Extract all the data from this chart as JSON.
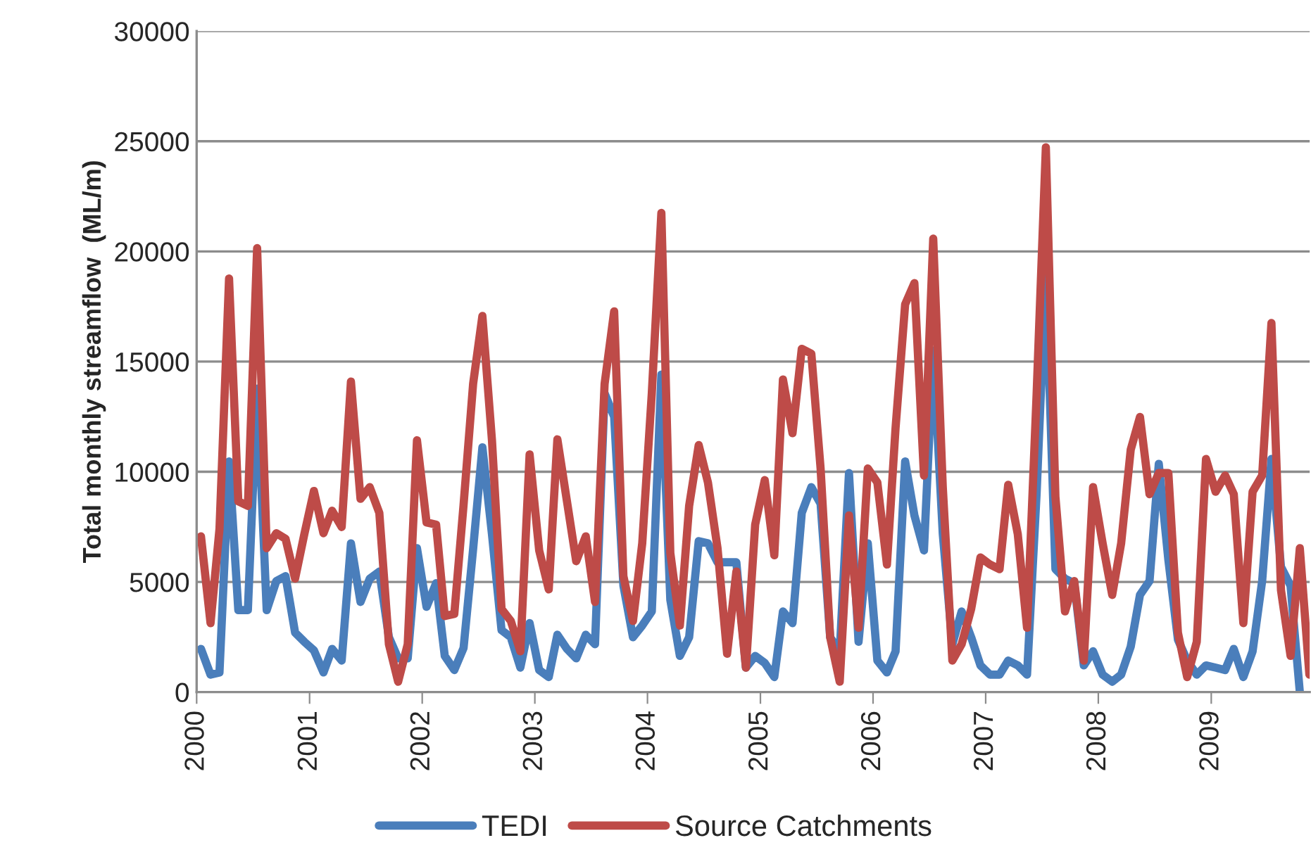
{
  "chart_data": {
    "type": "line",
    "ylabel": "Total monthly streamflow  (ML/m)",
    "x": [
      "2000-01-15",
      "2000-02-15",
      "2000-03-15",
      "2000-04-15",
      "2000-05-15",
      "2000-06-15",
      "2000-07-15",
      "2000-08-15",
      "2000-09-15",
      "2000-10-15",
      "2000-11-15",
      "2000-12-15",
      "2001-01-15",
      "2001-02-15",
      "2001-03-15",
      "2001-04-15",
      "2001-05-15",
      "2001-06-15",
      "2001-07-15",
      "2001-08-15",
      "2001-09-15",
      "2001-10-15",
      "2001-11-15",
      "2001-12-15",
      "2002-01-15",
      "2002-02-15",
      "2002-03-15",
      "2002-04-15",
      "2002-05-15",
      "2002-06-15",
      "2002-07-15",
      "2002-08-15",
      "2002-09-15",
      "2002-10-15",
      "2002-11-15",
      "2002-12-15",
      "2003-01-15",
      "2003-02-15",
      "2003-03-15",
      "2003-04-15",
      "2003-05-15",
      "2003-06-15",
      "2003-07-15",
      "2003-08-15",
      "2003-09-15",
      "2003-10-15",
      "2003-11-15",
      "2003-12-15",
      "2004-01-15",
      "2004-02-15",
      "2004-03-15",
      "2004-04-15",
      "2004-05-15",
      "2004-06-15",
      "2004-07-15",
      "2004-08-15",
      "2004-09-15",
      "2004-10-15",
      "2004-11-15",
      "2004-12-15",
      "2005-01-15",
      "2005-02-15",
      "2005-03-15",
      "2005-04-15",
      "2005-05-15",
      "2005-06-15",
      "2005-07-15",
      "2005-08-15",
      "2005-09-15",
      "2005-10-15",
      "2005-11-15",
      "2005-12-15",
      "2006-01-15",
      "2006-02-15",
      "2006-03-15",
      "2006-04-15",
      "2006-05-15",
      "2006-06-15",
      "2006-07-15",
      "2006-08-15",
      "2006-09-15",
      "2006-10-15",
      "2006-11-15",
      "2006-12-15",
      "2007-01-15",
      "2007-02-15",
      "2007-03-15",
      "2007-04-15",
      "2007-05-15",
      "2007-06-15",
      "2007-07-15",
      "2007-08-15",
      "2007-09-15",
      "2007-10-15",
      "2007-11-15",
      "2007-12-15",
      "2008-01-15",
      "2008-02-15",
      "2008-03-15",
      "2008-04-15",
      "2008-05-15",
      "2008-06-15",
      "2008-07-15",
      "2008-08-15",
      "2008-09-15",
      "2008-10-15",
      "2008-11-15",
      "2008-12-15",
      "2009-01-15",
      "2009-02-15",
      "2009-03-15",
      "2009-04-15",
      "2009-05-15",
      "2009-06-15",
      "2009-07-15",
      "2009-08-15",
      "2009-09-15",
      "2009-10-15",
      "2009-11-15"
    ],
    "series": [
      {
        "name": "TEDI",
        "color": "#4a7ebb",
        "values": [
          1960,
          790,
          890,
          10470,
          3720,
          3720,
          13770,
          3720,
          5040,
          5260,
          2700,
          2280,
          1890,
          890,
          1960,
          1430,
          6750,
          4090,
          5150,
          5470,
          2490,
          1530,
          1530,
          6530,
          3870,
          4940,
          1640,
          1000,
          2000,
          6500,
          11110,
          7170,
          2810,
          2490,
          1110,
          3130,
          1000,
          680,
          2600,
          1960,
          1530,
          2600,
          2170,
          13560,
          12500,
          4830,
          2490,
          3020,
          3660,
          14410,
          4190,
          1640,
          2490,
          6850,
          6750,
          5890,
          null,
          5890,
          1110,
          1640,
          1320,
          680,
          3660,
          3130,
          8130,
          9300,
          8550,
          2490,
          1850,
          9940,
          2280,
          6750,
          1430,
          890,
          1850,
          10470,
          8020,
          6430,
          15500,
          7170,
          2170,
          3660,
          2490,
          1210,
          790,
          790,
          1430,
          1210,
          790,
          9000,
          19000,
          5580,
          5150,
          4940,
          1210,
          1850,
          790,
          470,
          790,
          2060,
          4410,
          5040,
          10360,
          6000,
          2380,
          1430,
          790,
          1210,
          1110,
          1000,
          1960,
          680,
          1850,
          5040,
          10580,
          5680,
          4830,
          0,
          null
        ]
      },
      {
        "name": "Source Catchments",
        "color": "#be4b48",
        "values": [
          7070,
          3130,
          7400,
          18770,
          8660,
          8450,
          20150,
          6530,
          7210,
          6960,
          5150,
          7170,
          9130,
          7210,
          8230,
          7490,
          14090,
          8770,
          9300,
          8130,
          2170,
          470,
          2170,
          11430,
          7700,
          7600,
          3450,
          3550,
          8500,
          14000,
          17070,
          11430,
          3770,
          3230,
          1850,
          10790,
          6430,
          4660,
          11470,
          8660,
          5940,
          7070,
          4090,
          13980,
          17280,
          5260,
          3230,
          6750,
          13560,
          21750,
          6320,
          3020,
          8450,
          11210,
          9510,
          6530,
          1740,
          5470,
          1110,
          7600,
          9620,
          6210,
          14190,
          11750,
          15580,
          15360,
          10150,
          2490,
          470,
          8020,
          2920,
          10150,
          9510,
          5790,
          12000,
          17600,
          18560,
          9830,
          20580,
          9300,
          1430,
          2170,
          3770,
          6110,
          5790,
          5580,
          9410,
          7170,
          2920,
          13500,
          24730,
          8870,
          3660,
          5040,
          1430,
          9300,
          6750,
          4410,
          6750,
          11000,
          12490,
          8980,
          9940,
          9940,
          2700,
          680,
          2280,
          10580,
          9090,
          9830,
          8980,
          3130,
          9090,
          9830,
          16750,
          4620,
          1640,
          6530,
          790
        ]
      }
    ],
    "xlim": [
      "2000-01-01",
      "2009-11-16"
    ],
    "xticks": [
      {
        "value": "2000-01-01",
        "label": "2000"
      },
      {
        "value": "2001-01-01",
        "label": "2001"
      },
      {
        "value": "2002-01-01",
        "label": "2002"
      },
      {
        "value": "2003-01-01",
        "label": "2003"
      },
      {
        "value": "2004-01-01",
        "label": "2004"
      },
      {
        "value": "2005-01-01",
        "label": "2005"
      },
      {
        "value": "2006-01-01",
        "label": "2006"
      },
      {
        "value": "2007-01-01",
        "label": "2007"
      },
      {
        "value": "2008-01-01",
        "label": "2008"
      },
      {
        "value": "2009-01-01",
        "label": "2009"
      }
    ],
    "ylim": [
      0,
      30000
    ],
    "yticks": [
      0,
      5000,
      10000,
      15000,
      20000,
      25000,
      30000
    ],
    "grid": "y",
    "legend": "bottom",
    "marker": "none",
    "line_style": "solid"
  }
}
